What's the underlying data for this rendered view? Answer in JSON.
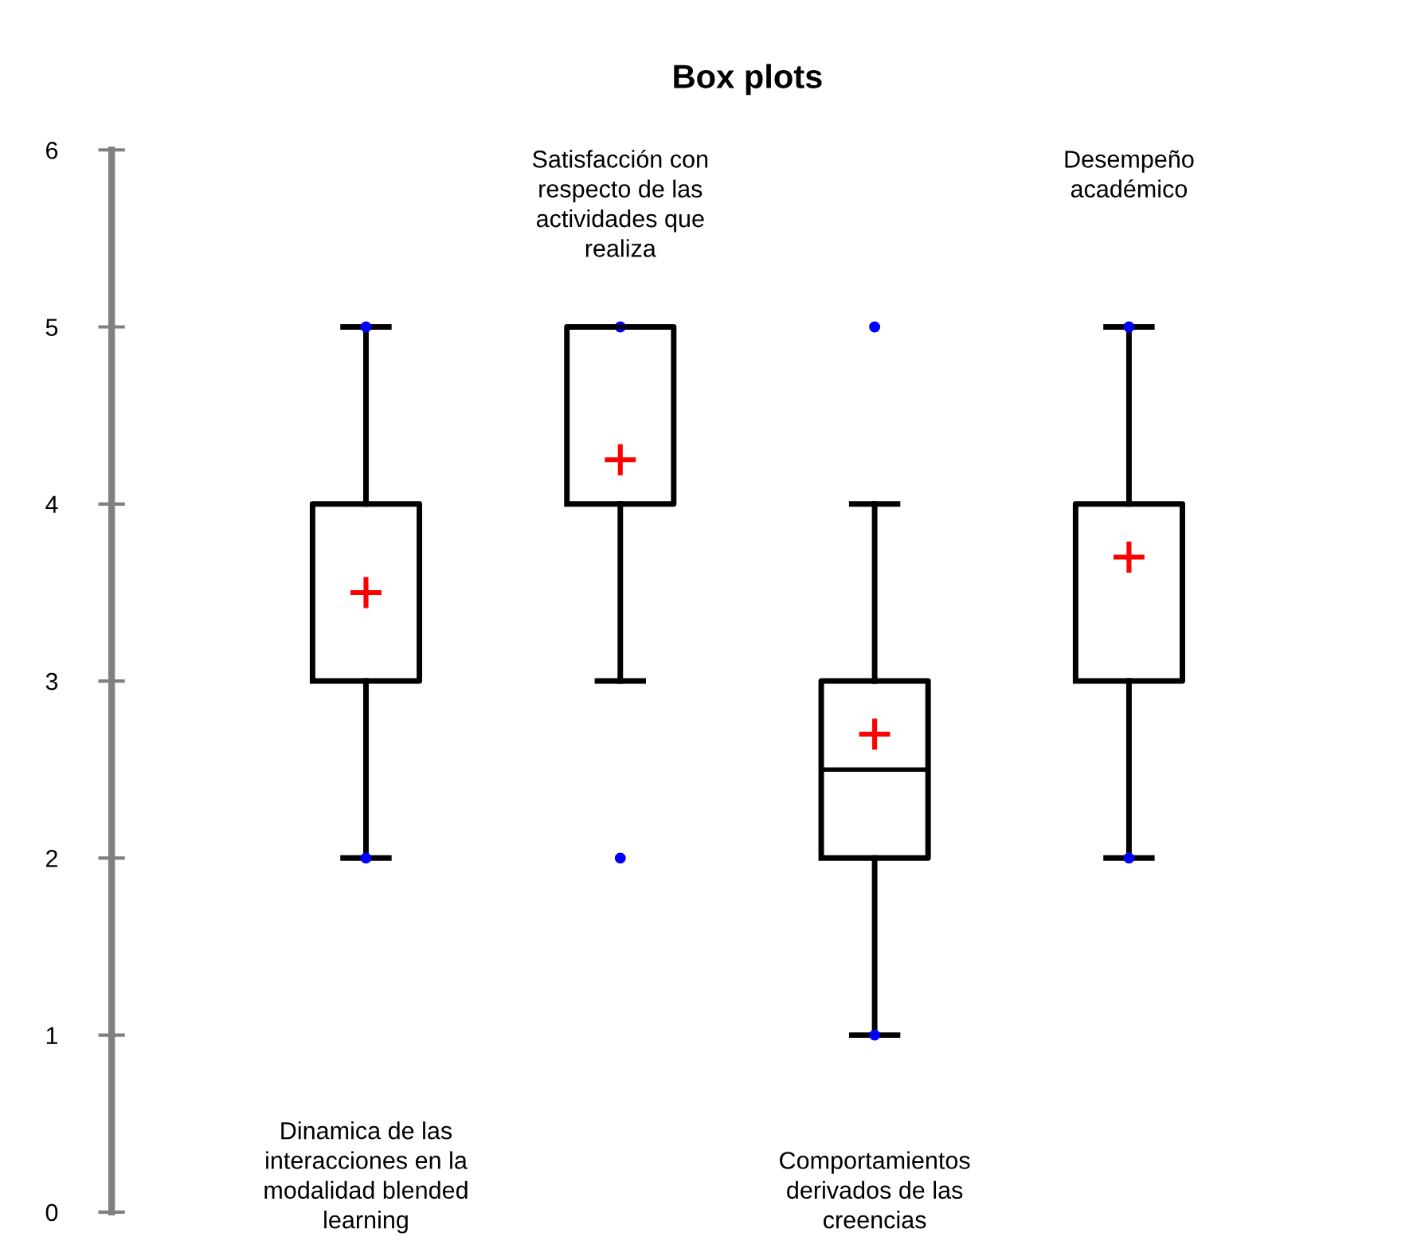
{
  "chart_data": {
    "type": "box",
    "title": "Box plots",
    "categories": [
      "Dinamica de las interacciones en la modalidad blended learning",
      "Satisfacción con respecto de las actividades que realiza",
      "Comportamientos derivados de las creencias",
      "Desempeño académico"
    ],
    "boxes": [
      {
        "low": 2,
        "q1": 3,
        "median": 4,
        "q3": 4,
        "high": 5,
        "mean": 3.5,
        "outliers": [
          2,
          5
        ]
      },
      {
        "low": 3,
        "q1": 4,
        "median": 5,
        "q3": 5,
        "high": 5,
        "mean": 4.25,
        "outliers": [
          2,
          5
        ]
      },
      {
        "low": 1,
        "q1": 2,
        "median": 2.5,
        "q3": 3,
        "high": 4,
        "mean": 2.7,
        "outliers": [
          1,
          5
        ]
      },
      {
        "low": 2,
        "q1": 3,
        "median": 4,
        "q3": 4,
        "high": 5,
        "mean": 3.7,
        "outliers": [
          2,
          5
        ]
      }
    ],
    "ylim": [
      0,
      6
    ],
    "yticks": [
      0,
      1,
      2,
      3,
      4,
      5,
      6
    ],
    "grid": false,
    "legend": false
  }
}
